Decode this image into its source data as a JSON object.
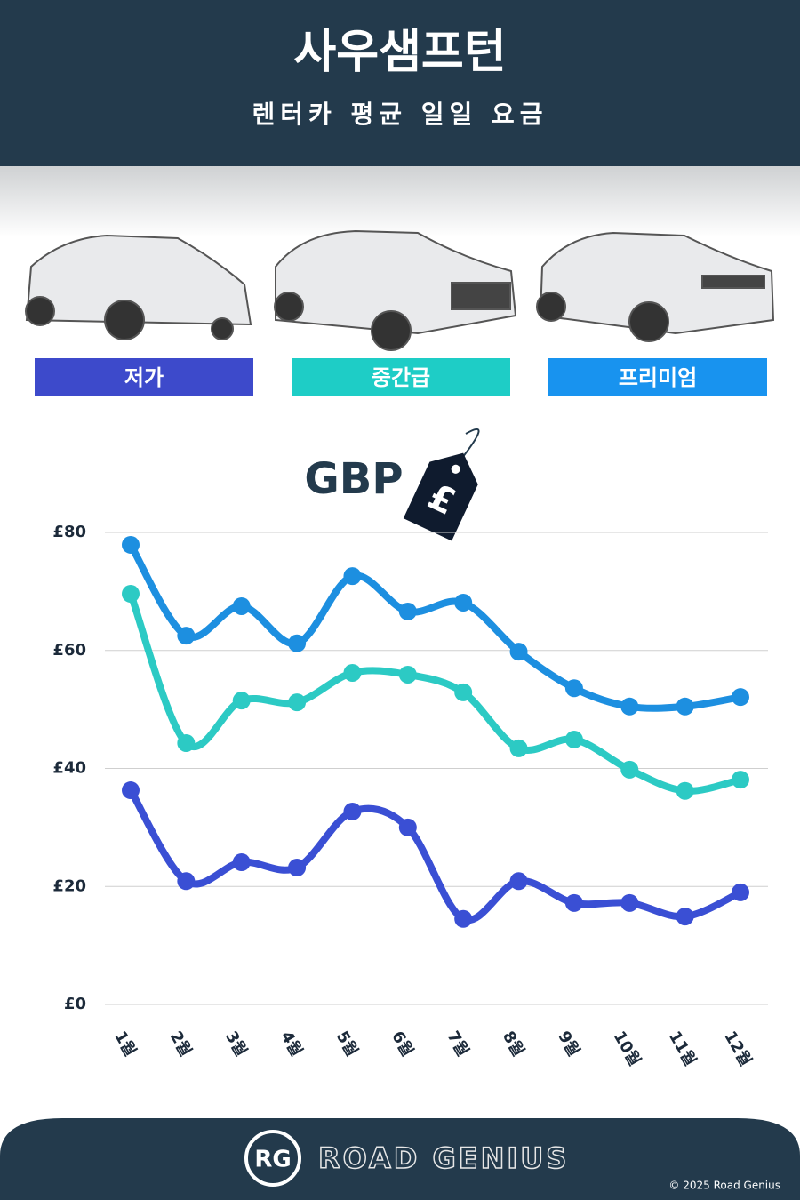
{
  "header": {
    "title": "사우샘프턴",
    "subtitle": "렌터카 평균 일일 요금"
  },
  "chart_data": {
    "type": "line",
    "currency_label": "GBP",
    "currency_symbol": "£",
    "categories": [
      "1월",
      "2월",
      "3월",
      "4월",
      "5월",
      "6월",
      "7월",
      "8월",
      "9월",
      "10월",
      "11월",
      "12월"
    ],
    "series": [
      {
        "name": "저가",
        "color": "#3a4fd4",
        "values": [
          36.3,
          20.9,
          24.1,
          23.2,
          32.7,
          30.0,
          14.5,
          20.9,
          17.2,
          17.2,
          14.9,
          19.0
        ]
      },
      {
        "name": "중간급",
        "color": "#2ccac4",
        "values": [
          69.6,
          44.3,
          51.5,
          51.2,
          56.2,
          55.9,
          52.9,
          43.4,
          44.9,
          39.8,
          36.2,
          38.1
        ]
      },
      {
        "name": "프리미엄",
        "color": "#1d8fe0",
        "values": [
          77.9,
          62.5,
          67.5,
          61.2,
          72.6,
          66.6,
          68.1,
          59.8,
          53.6,
          50.5,
          50.5,
          52.1
        ]
      }
    ],
    "legend_colors": [
      "#3d4acb",
      "#1ecdc6",
      "#1893ef"
    ],
    "ylim": [
      0,
      80
    ],
    "yticks": [
      {
        "value": 0,
        "label": "£0"
      },
      {
        "value": 20,
        "label": "£20"
      },
      {
        "value": 40,
        "label": "£40"
      },
      {
        "value": 60,
        "label": "£60"
      },
      {
        "value": 80,
        "label": "£80"
      }
    ],
    "grid": true
  },
  "footer": {
    "logo": "RG",
    "brand": "ROAD GENIUS",
    "copyright": "© 2025 Road Genius"
  }
}
